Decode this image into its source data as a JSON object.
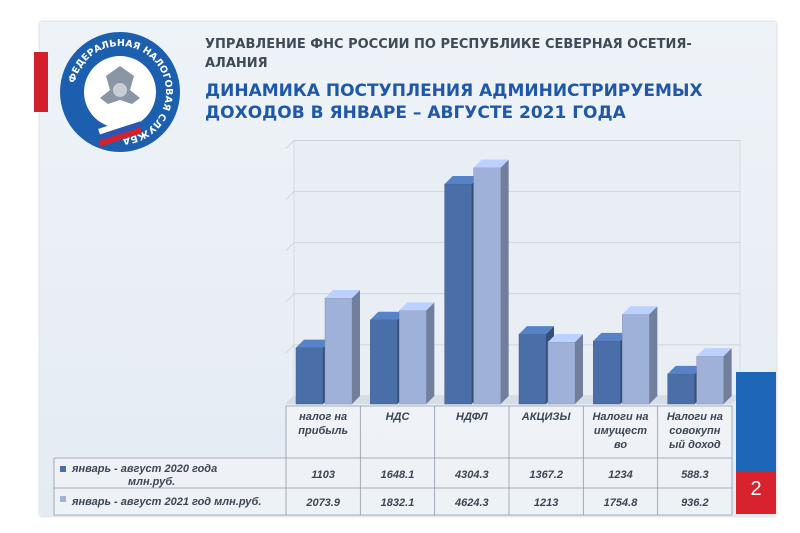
{
  "header": {
    "org": "УПРАВЛЕНИЕ ФНС РОССИИ ПО РЕСПУБЛИКЕ СЕВЕРНАЯ ОСЕТИЯ-АЛАНИЯ",
    "title": "ДИНАМИКА ПОСТУПЛЕНИЯ АДМИНИСТРИРУЕМЫХ ДОХОДОВ В ЯНВАРЕ – АВГУСТЕ 2021 ГОДА"
  },
  "logo": {
    "text": "ФЕДЕРАЛЬНАЯ НАЛОГОВАЯ СЛУЖБА"
  },
  "page_number": "2",
  "colors": {
    "series1": "#4a6ea7",
    "series2": "#9fb1d9",
    "accent_blue": "#1f58a8",
    "accent_red": "#d21f2b"
  },
  "chart_data": {
    "type": "bar",
    "categories": [
      [
        "налог на",
        "прибыль"
      ],
      [
        "НДС"
      ],
      [
        "НДФЛ"
      ],
      [
        "АКЦИЗЫ"
      ],
      [
        "Налоги на",
        "имущест",
        "во"
      ],
      [
        "Налоги на",
        "совокупн",
        "ый доход"
      ]
    ],
    "series": [
      {
        "name": "январь - август 2020 года млн.руб.",
        "values": [
          1103,
          1648.1,
          4304.3,
          1367.2,
          1234,
          588.3
        ],
        "labels": [
          "1103",
          "1648.1",
          "4304.3",
          "1367.2",
          "1234",
          "588.3"
        ]
      },
      {
        "name": "январь - август 2021 год млн.руб.",
        "values": [
          2073.9,
          1832.1,
          4624.3,
          1213,
          1754.8,
          936.2
        ],
        "labels": [
          "2073.9",
          "1832.1",
          "4624.3",
          "1213",
          "1754.8",
          "936.2"
        ]
      }
    ],
    "ylim": [
      0,
      5000
    ],
    "grid": true,
    "legend": "table-left"
  }
}
